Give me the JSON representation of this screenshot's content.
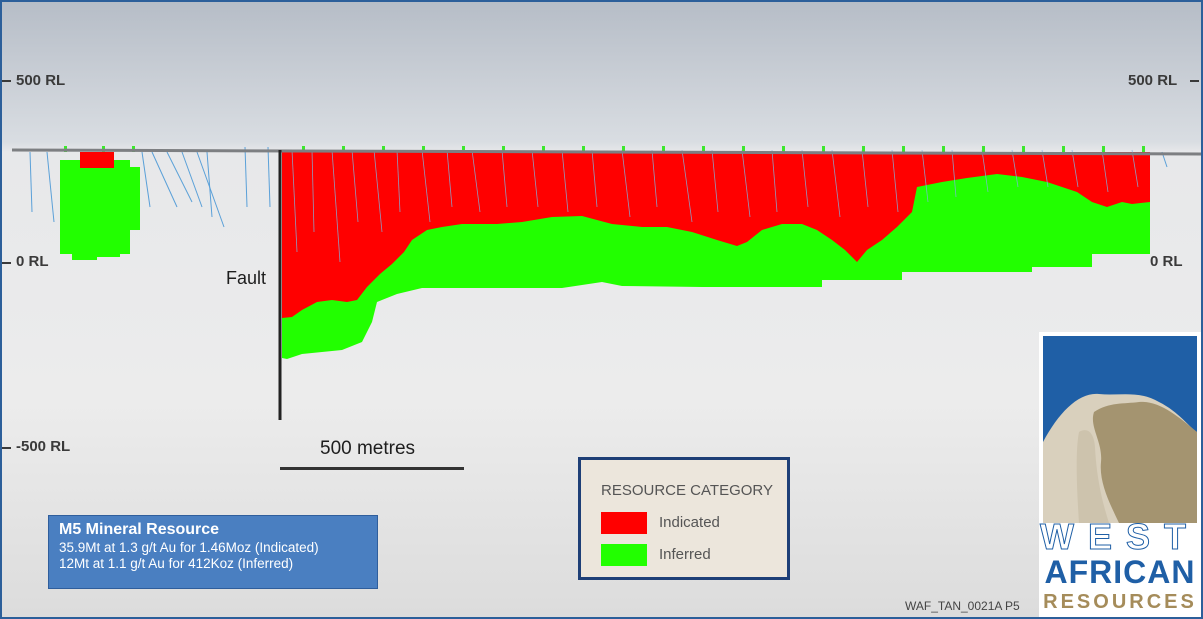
{
  "elevation_labels": {
    "top": "500 RL",
    "mid": "0 RL",
    "bottom": "-500 RL"
  },
  "fault_label": "Fault",
  "scale_bar_label": "500 metres",
  "resource_summary": {
    "title": "M5 Mineral Resource",
    "lines": [
      "35.9Mt at 1.3 g/t Au for 1.46Moz (Indicated)",
      "12Mt at 1.1 g/t Au for 412Koz (Inferred)"
    ]
  },
  "legend": {
    "title": "RESOURCE CATEGORY",
    "items": [
      {
        "label": "Indicated",
        "color": "#ff0000"
      },
      {
        "label": "Inferred",
        "color": "#22ff00"
      }
    ]
  },
  "document_code": "WAF_TAN_0021A P5",
  "logo": {
    "line1": "WEST",
    "line2": "AFRICAN",
    "line3": "RESOURCES",
    "colors": {
      "sky": "#1f5fa6",
      "mountain_light": "#d9d0bd",
      "mountain_dark": "#a49470",
      "text_blue": "#1f5fa6",
      "text_gold": "#a58c5a"
    }
  },
  "colors": {
    "indicated": "#ff0000",
    "inferred": "#22ff00",
    "frame": "#2c5f9a",
    "drillhole": "#5aa0d8"
  }
}
